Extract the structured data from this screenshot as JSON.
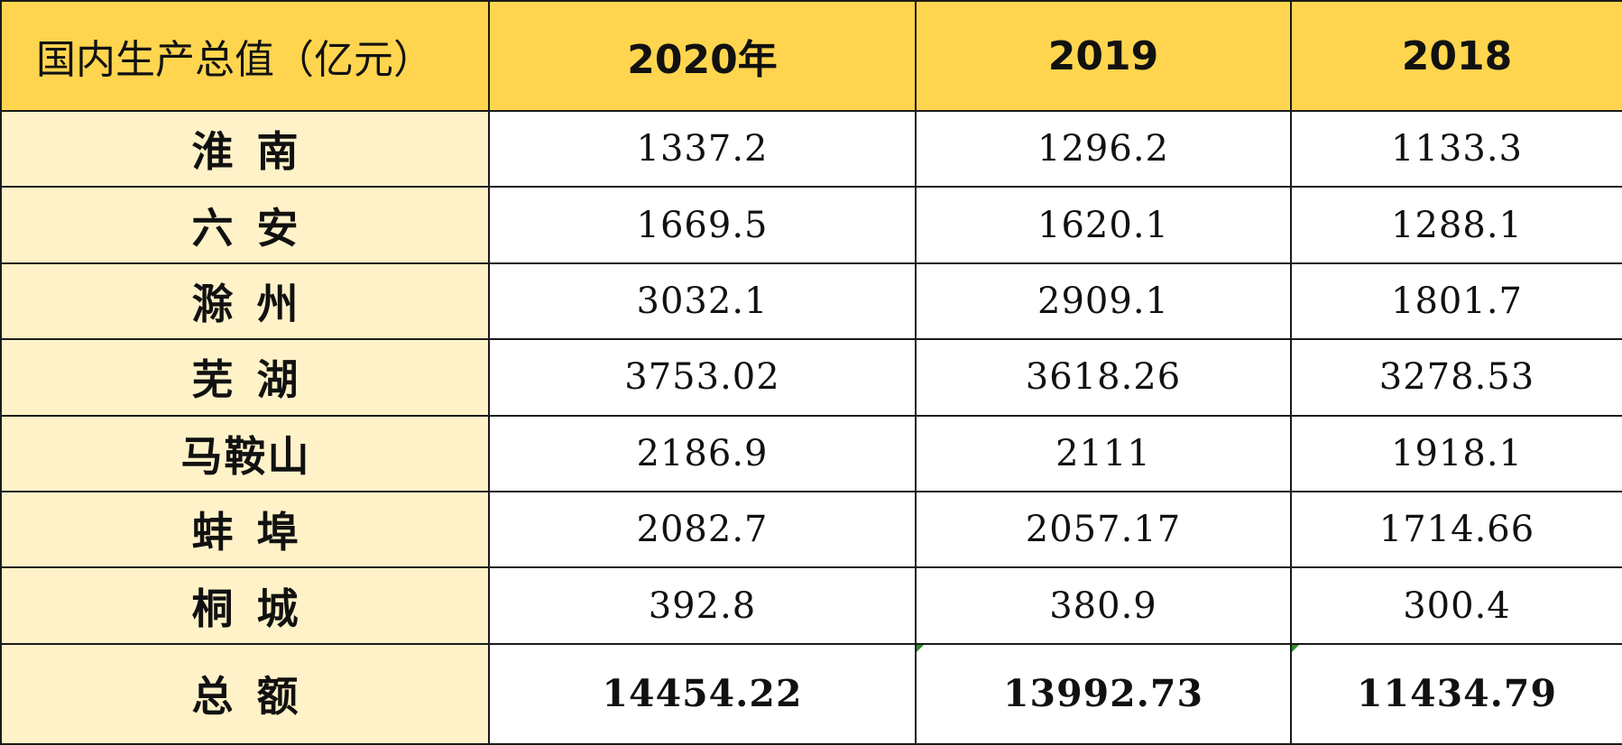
{
  "table": {
    "header": {
      "corner": "国内生产总值（亿元）",
      "years": [
        "2020年",
        "2019",
        "2018"
      ]
    },
    "rows": [
      {
        "city": "淮南",
        "values": [
          "1337.2",
          "1296.2",
          "1133.3"
        ]
      },
      {
        "city": "六安",
        "values": [
          "1669.5",
          "1620.1",
          "1288.1"
        ]
      },
      {
        "city": "滁州",
        "values": [
          "3032.1",
          "2909.1",
          "1801.7"
        ]
      },
      {
        "city": "芜湖",
        "values": [
          "3753.02",
          "3618.26",
          "3278.53"
        ]
      },
      {
        "city": "马鞍山",
        "values": [
          "2186.9",
          "2111",
          "1918.1"
        ]
      },
      {
        "city": "蚌埠",
        "values": [
          "2082.7",
          "2057.17",
          "1714.66"
        ]
      },
      {
        "city": "桐城",
        "values": [
          "392.8",
          "380.9",
          "300.4"
        ]
      }
    ],
    "total": {
      "label": "总额",
      "values": [
        "14454.22",
        "13992.73",
        "11434.79"
      ]
    }
  },
  "colors": {
    "header_bg": "#ffd54f",
    "city_bg": "#fff2c8",
    "border": "#1a1a1a"
  }
}
